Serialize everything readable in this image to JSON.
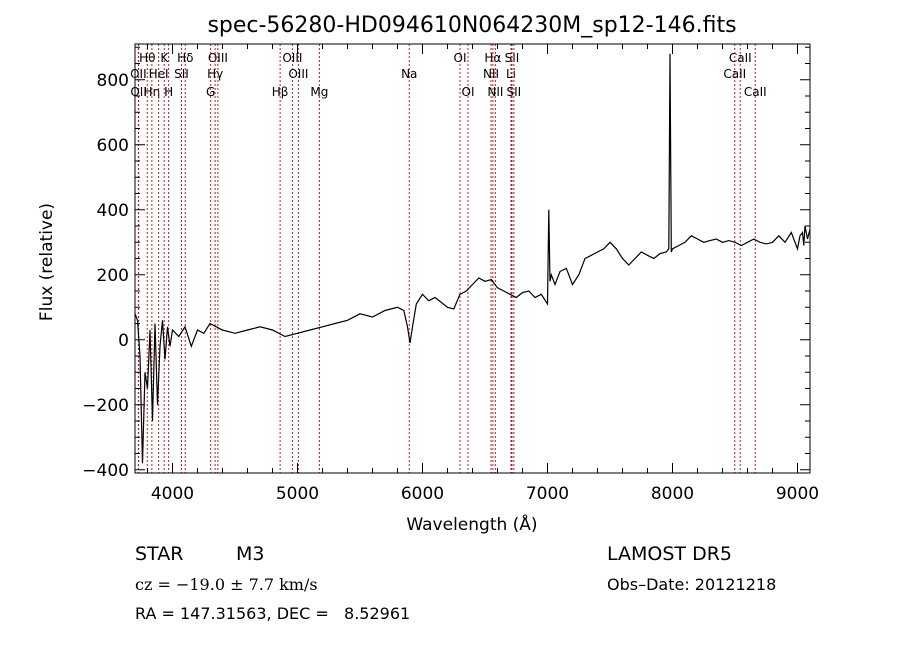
{
  "chart_data": {
    "type": "line",
    "title": "spec-56280-HD094610N064230M_sp12-146.fits",
    "xlabel": "Wavelength (Å)",
    "ylabel": "Flux (relative)",
    "xlim": [
      3700,
      9100
    ],
    "ylim": [
      -410,
      910
    ],
    "xticks": [
      4000,
      5000,
      6000,
      7000,
      8000,
      9000
    ],
    "yticks": [
      -400,
      -200,
      0,
      200,
      400,
      600,
      800
    ],
    "grid": false,
    "series": [
      {
        "x": [
          3700,
          3720,
          3740,
          3760,
          3780,
          3800,
          3820,
          3840,
          3860,
          3880,
          3900,
          3920,
          3940,
          3960,
          3980,
          4000,
          4050,
          4100,
          4150,
          4200,
          4250,
          4300,
          4350,
          4400,
          4500,
          4600,
          4700,
          4800,
          4900,
          5000,
          5100,
          5200,
          5300,
          5400,
          5500,
          5600,
          5700,
          5800,
          5850,
          5880,
          5900,
          5920,
          5950,
          6000,
          6050,
          6100,
          6150,
          6200,
          6250,
          6300,
          6350,
          6400,
          6450,
          6500,
          6550,
          6600,
          6650,
          6700,
          6750,
          6800,
          6850,
          6900,
          6950,
          7000,
          7010,
          7020,
          7030,
          7040,
          7060,
          7100,
          7150,
          7200,
          7250,
          7300,
          7350,
          7400,
          7450,
          7500,
          7550,
          7600,
          7650,
          7700,
          7750,
          7800,
          7850,
          7900,
          7950,
          7970,
          7980,
          7990,
          8000,
          8050,
          8100,
          8150,
          8200,
          8250,
          8300,
          8350,
          8400,
          8450,
          8500,
          8550,
          8600,
          8650,
          8700,
          8750,
          8800,
          8850,
          8900,
          8950,
          9000,
          9020,
          9040,
          9050,
          9060,
          9080,
          9100
        ],
        "y": [
          80,
          60,
          -50,
          -380,
          -100,
          -150,
          30,
          -250,
          50,
          -200,
          -20,
          60,
          -60,
          40,
          -20,
          30,
          10,
          40,
          -20,
          30,
          20,
          50,
          40,
          30,
          20,
          30,
          40,
          30,
          10,
          20,
          30,
          40,
          50,
          60,
          80,
          70,
          90,
          100,
          90,
          40,
          -10,
          40,
          110,
          140,
          120,
          130,
          115,
          100,
          95,
          140,
          150,
          170,
          190,
          180,
          185,
          160,
          150,
          140,
          130,
          145,
          150,
          130,
          140,
          110,
          400,
          180,
          200,
          190,
          170,
          210,
          220,
          170,
          200,
          250,
          260,
          270,
          280,
          300,
          280,
          250,
          230,
          250,
          270,
          260,
          250,
          265,
          270,
          280,
          880,
          270,
          280,
          290,
          300,
          320,
          310,
          300,
          305,
          310,
          300,
          305,
          300,
          290,
          300,
          310,
          300,
          295,
          300,
          320,
          300,
          330,
          280,
          320,
          330,
          290,
          350,
          310,
          340
        ]
      }
    ],
    "lines": [
      {
        "label": "Hθ",
        "wavelength": 3798,
        "row": 1
      },
      {
        "label": "OII",
        "wavelength": 3727,
        "row": 2
      },
      {
        "label": "OII",
        "wavelength": 3729,
        "row": 3
      },
      {
        "label": "Hη",
        "wavelength": 3835,
        "row": 3
      },
      {
        "label": "HeI",
        "wavelength": 3889,
        "row": 2
      },
      {
        "label": "K",
        "wavelength": 3934,
        "row": 1
      },
      {
        "label": "H",
        "wavelength": 3969,
        "row": 3
      },
      {
        "label": "SII",
        "wavelength": 4072,
        "row": 2
      },
      {
        "label": "Hδ",
        "wavelength": 4102,
        "row": 1
      },
      {
        "label": "OIII",
        "wavelength": 4363,
        "row": 1
      },
      {
        "label": "Hγ",
        "wavelength": 4341,
        "row": 2
      },
      {
        "label": "G",
        "wavelength": 4305,
        "row": 3
      },
      {
        "label": "Hβ",
        "wavelength": 4861,
        "row": 3
      },
      {
        "label": "OIII",
        "wavelength": 4959,
        "row": 1
      },
      {
        "label": "OIII",
        "wavelength": 5007,
        "row": 2
      },
      {
        "label": "Mg",
        "wavelength": 5175,
        "row": 3
      },
      {
        "label": "Na",
        "wavelength": 5894,
        "row": 2
      },
      {
        "label": "OI",
        "wavelength": 6300,
        "row": 1
      },
      {
        "label": "OI",
        "wavelength": 6364,
        "row": 3
      },
      {
        "label": "Hα",
        "wavelength": 6563,
        "row": 1
      },
      {
        "label": "NII",
        "wavelength": 6548,
        "row": 2
      },
      {
        "label": "NII",
        "wavelength": 6583,
        "row": 3
      },
      {
        "label": "SII",
        "wavelength": 6716,
        "row": 1
      },
      {
        "label": "Li",
        "wavelength": 6708,
        "row": 2
      },
      {
        "label": "SII",
        "wavelength": 6731,
        "row": 3
      },
      {
        "label": "CaII",
        "wavelength": 8542,
        "row": 1
      },
      {
        "label": "CaII",
        "wavelength": 8498,
        "row": 2
      },
      {
        "label": "CaII",
        "wavelength": 8662,
        "row": 3
      }
    ]
  },
  "info": {
    "object_class": "STAR",
    "subclass": "M3",
    "survey": "LAMOST DR5",
    "cz": "cz = −19.0 ± 7.7 km/s",
    "obs_date": "Obs–Date: 20121218",
    "coords": "RA = 147.31563, DEC =   8.52961"
  }
}
